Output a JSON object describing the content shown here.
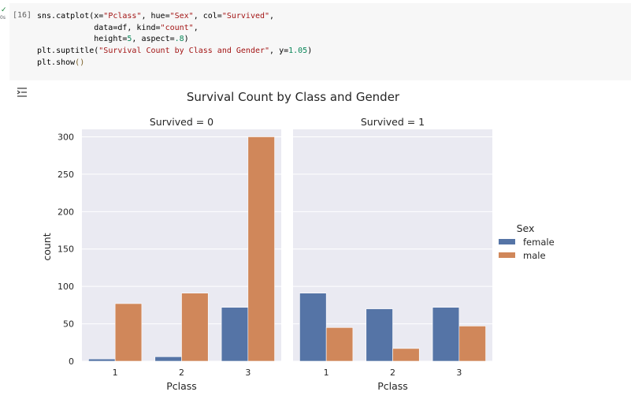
{
  "cell": {
    "exec_count": "[16]",
    "run_time": "0s",
    "code_lines": [
      [
        {
          "t": "sns.catplot(x=",
          "c": ""
        },
        {
          "t": "\"Pclass\"",
          "c": "str"
        },
        {
          "t": ", hue=",
          "c": ""
        },
        {
          "t": "\"Sex\"",
          "c": "str"
        },
        {
          "t": ", col=",
          "c": ""
        },
        {
          "t": "\"Survived\"",
          "c": "str"
        },
        {
          "t": ",",
          "c": ""
        }
      ],
      [
        {
          "t": "            data=df, kind=",
          "c": ""
        },
        {
          "t": "\"count\"",
          "c": "str"
        },
        {
          "t": ",",
          "c": ""
        }
      ],
      [
        {
          "t": "            height=",
          "c": ""
        },
        {
          "t": "5",
          "c": "num"
        },
        {
          "t": ", aspect=",
          "c": ""
        },
        {
          "t": ".8",
          "c": "num"
        },
        {
          "t": ")",
          "c": ""
        }
      ],
      [
        {
          "t": "plt.suptitle(",
          "c": ""
        },
        {
          "t": "\"Survival Count by Class and Gender\"",
          "c": "str"
        },
        {
          "t": ", y=",
          "c": ""
        },
        {
          "t": "1.05",
          "c": "num"
        },
        {
          "t": ")",
          "c": ""
        }
      ],
      [
        {
          "t": "plt.show",
          "c": ""
        },
        {
          "t": "()",
          "c": "paren"
        }
      ]
    ]
  },
  "output": {
    "icon": "output-toggle-icon"
  },
  "chart_data": {
    "type": "bar",
    "title": "Survival Count by Class and Gender",
    "xlabel": "Pclass",
    "ylabel": "count",
    "ylim": [
      0,
      310
    ],
    "yticks": [
      0,
      50,
      100,
      150,
      200,
      250,
      300
    ],
    "categories": [
      "1",
      "2",
      "3"
    ],
    "legend": {
      "title": "Sex",
      "placement": "right",
      "entries": [
        {
          "name": "female",
          "color": "#5574a6"
        },
        {
          "name": "male",
          "color": "#d0875a"
        }
      ]
    },
    "panels": [
      {
        "title": "Survived = 0",
        "series": [
          {
            "name": "female",
            "values": [
              3,
              6,
              72
            ]
          },
          {
            "name": "male",
            "values": [
              77,
              91,
              300
            ]
          }
        ]
      },
      {
        "title": "Survived = 1",
        "series": [
          {
            "name": "female",
            "values": [
              91,
              70,
              72
            ]
          },
          {
            "name": "male",
            "values": [
              45,
              17,
              47
            ]
          }
        ]
      }
    ],
    "grid": true,
    "background": "#eaeaf2"
  }
}
